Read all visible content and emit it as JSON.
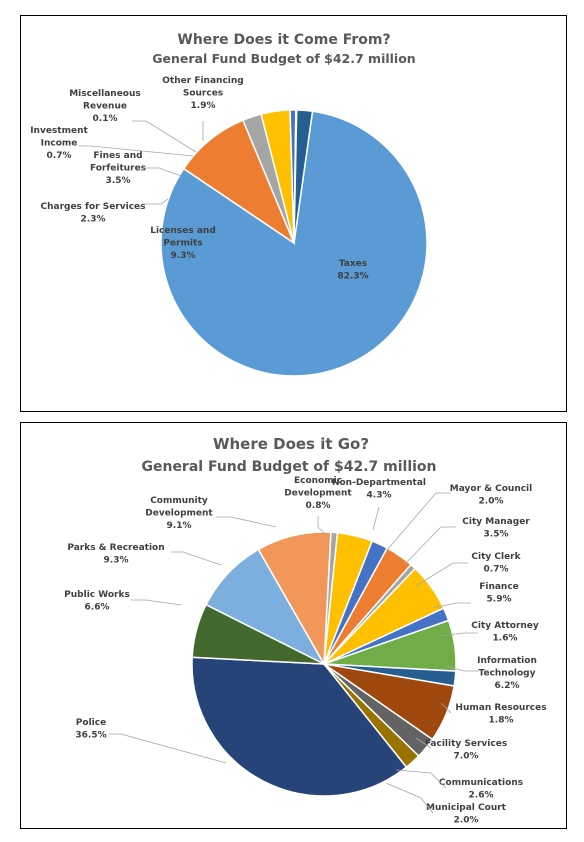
{
  "chart_data": [
    {
      "type": "pie",
      "title": "Where Does it Come From?",
      "subtitle": "General Fund Budget of $42.7 million",
      "slices": [
        {
          "label": "Taxes",
          "value": 82.3,
          "value_label": "82.3%",
          "color": "#5B9BD5"
        },
        {
          "label": "Licenses and Permits",
          "value": 9.3,
          "value_label": "9.3%",
          "color": "#ED7D31"
        },
        {
          "label": "Charges for Services",
          "value": 2.3,
          "value_label": "2.3%",
          "color": "#A5A5A5"
        },
        {
          "label": "Fines and Forfeitures",
          "value": 3.5,
          "value_label": "3.5%",
          "color": "#FFC000"
        },
        {
          "label": "Investment Income",
          "value": 0.7,
          "value_label": "0.7%",
          "color": "#4472C4"
        },
        {
          "label": "Miscellaneous Revenue",
          "value": 0.1,
          "value_label": "0.1%",
          "color": "#70AD47"
        },
        {
          "label": "Other Financing Sources",
          "value": 1.9,
          "value_label": "1.9%",
          "color": "#255E91"
        }
      ]
    },
    {
      "type": "pie",
      "title": "Where Does it Go?",
      "subtitle": "General Fund Budget of $42.7 million",
      "slices": [
        {
          "label": "Economic Development",
          "value": 0.8,
          "value_label": "0.8%",
          "color": "#A5A5A5"
        },
        {
          "label": "Non-Departmental",
          "value": 4.3,
          "value_label": "4.3%",
          "color": "#FFC000"
        },
        {
          "label": "Mayor & Council",
          "value": 2.0,
          "value_label": "2.0%",
          "color": "#4472C4"
        },
        {
          "label": "City Manager",
          "value": 3.5,
          "value_label": "3.5%",
          "color": "#ED7D31"
        },
        {
          "label": "City Clerk",
          "value": 0.7,
          "value_label": "0.7%",
          "color": "#A5A5A5"
        },
        {
          "label": "Finance",
          "value": 5.9,
          "value_label": "5.9%",
          "color": "#FFC000"
        },
        {
          "label": "City Attorney",
          "value": 1.6,
          "value_label": "1.6%",
          "color": "#4472C4"
        },
        {
          "label": "Information Technology",
          "value": 6.2,
          "value_label": "6.2%",
          "color": "#70AD47"
        },
        {
          "label": "Human Resources",
          "value": 1.8,
          "value_label": "1.8%",
          "color": "#255E91"
        },
        {
          "label": "Facility Services",
          "value": 7.0,
          "value_label": "7.0%",
          "color": "#9E480E"
        },
        {
          "label": "Communications",
          "value": 2.6,
          "value_label": "2.6%",
          "color": "#636363"
        },
        {
          "label": "Municipal Court",
          "value": 2.0,
          "value_label": "2.0%",
          "color": "#997300"
        },
        {
          "label": "Police",
          "value": 36.5,
          "value_label": "36.5%",
          "color": "#264478"
        },
        {
          "label": "Public Works",
          "value": 6.6,
          "value_label": "6.6%",
          "color": "#43682B"
        },
        {
          "label": "Parks & Recreation",
          "value": 9.3,
          "value_label": "9.3%",
          "color": "#7CAFDD"
        },
        {
          "label": "Community Development",
          "value": 9.1,
          "value_label": "9.1%",
          "color": "#F1975A"
        }
      ]
    }
  ]
}
